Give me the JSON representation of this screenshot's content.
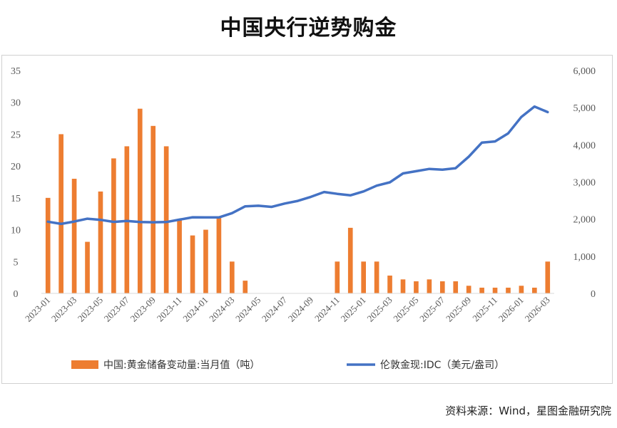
{
  "title": "中国央行逆势购金",
  "source": "资料来源：Wind，星图金融研究院",
  "chart_data": {
    "type": "bar+line",
    "categories": [
      "2023-01",
      "2023-02",
      "2023-03",
      "2023-04",
      "2023-05",
      "2023-06",
      "2023-07",
      "2023-08",
      "2023-09",
      "2023-10",
      "2023-11",
      "2023-12",
      "2024-01",
      "2024-02",
      "2024-03",
      "2024-04",
      "2024-05",
      "2024-06",
      "2024-07",
      "2024-08",
      "2024-09",
      "2024-10",
      "2024-11",
      "2024-12",
      "2025-01",
      "2025-02",
      "2025-03",
      "2025-04",
      "2025-05",
      "2025-06",
      "2025-07",
      "2025-08",
      "2025-09",
      "2025-10",
      "2025-11",
      "2025-12",
      "2026-01",
      "2026-02",
      "2026-03"
    ],
    "x_tick_labels": [
      "2023-01",
      "2023-03",
      "2023-05",
      "2023-07",
      "2023-09",
      "2023-11",
      "2024-01",
      "2024-03",
      "2024-05",
      "2024-07",
      "2024-09",
      "2024-11",
      "2025-01",
      "2025-03",
      "2025-05",
      "2025-07",
      "2025-09",
      "2025-11",
      "2026-01",
      "2026-03"
    ],
    "series": [
      {
        "name": "中国:黄金储备变动量:当月值（吨）",
        "type": "bar",
        "axis": "left",
        "color": "#ED7D31",
        "values": [
          15,
          25,
          18,
          8.1,
          16,
          21.2,
          23.1,
          29,
          26.3,
          23.1,
          11.5,
          9.1,
          10,
          12,
          5,
          2,
          0,
          0,
          0,
          0,
          0,
          0,
          5,
          10.3,
          5,
          5,
          2.8,
          2.2,
          1.9,
          2.2,
          1.9,
          1.9,
          1.2,
          0.9,
          0.9,
          0.9,
          1.2,
          0.9,
          5
        ]
      },
      {
        "name": "伦敦金现:IDC（美元/盎司）",
        "type": "line",
        "axis": "right",
        "color": "#4472C4",
        "values": [
          1930,
          1870,
          1935,
          2010,
          1980,
          1925,
          1950,
          1920,
          1915,
          1920,
          1985,
          2050,
          2045,
          2045,
          2160,
          2345,
          2360,
          2330,
          2420,
          2490,
          2600,
          2730,
          2680,
          2640,
          2745,
          2900,
          2990,
          3230,
          3290,
          3350,
          3330,
          3370,
          3680,
          4060,
          4090,
          4310,
          4750,
          5030,
          4880
        ]
      }
    ],
    "y_left": {
      "min": 0,
      "max": 35,
      "ticks": [
        "0",
        "5",
        "10",
        "15",
        "20",
        "25",
        "30",
        "35"
      ]
    },
    "y_right": {
      "min": 0,
      "max": 6000,
      "ticks": [
        "0",
        "1,000",
        "2,000",
        "3,000",
        "4,000",
        "5,000",
        "6,000"
      ]
    },
    "legend_position": "bottom",
    "grid": false
  }
}
